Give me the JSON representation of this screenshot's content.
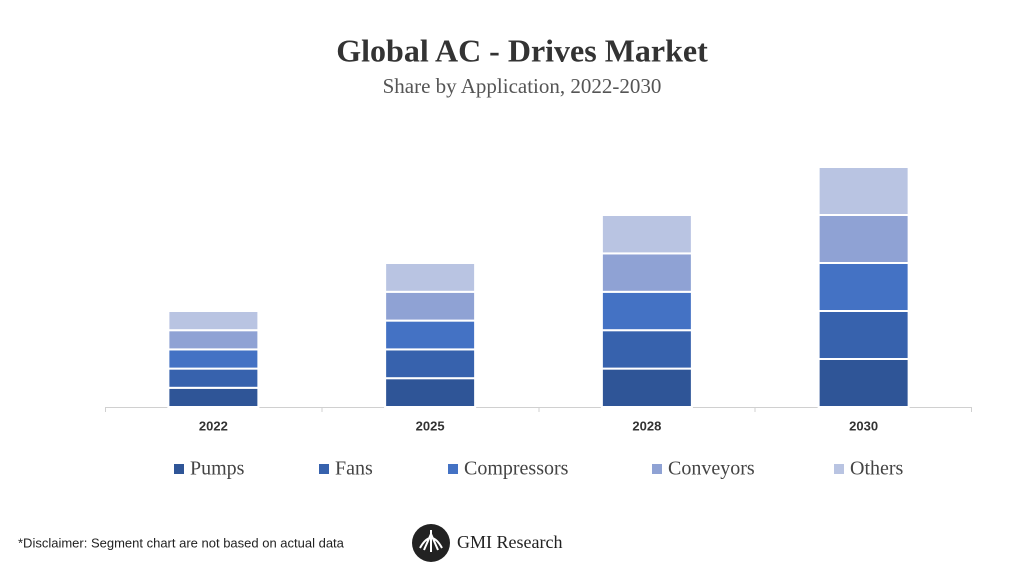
{
  "chart_data": {
    "type": "stacked-bar",
    "title": "Global AC - Drives Market",
    "subtitle": "Share by Application, 2022-2030",
    "categories": [
      "2022",
      "2025",
      "2028",
      "2030"
    ],
    "series": [
      {
        "name": "Pumps",
        "color": "#2f5597",
        "values": [
          4,
          6,
          8,
          10
        ]
      },
      {
        "name": "Fans",
        "color": "#3762ad",
        "values": [
          4,
          6,
          8,
          10
        ]
      },
      {
        "name": "Compressors",
        "color": "#4472c4",
        "values": [
          4,
          6,
          8,
          10
        ]
      },
      {
        "name": "Conveyors",
        "color": "#8fa2d4",
        "values": [
          4,
          6,
          8,
          10
        ]
      },
      {
        "name": "Others",
        "color": "#b9c4e2",
        "values": [
          4,
          6,
          8,
          10
        ]
      }
    ],
    "ylim": [
      0,
      60
    ],
    "legend": "bottom"
  },
  "footer": {
    "disclaimer": "*Disclaimer:  Segment chart are not based on actual data",
    "brand": "GMI Research"
  }
}
